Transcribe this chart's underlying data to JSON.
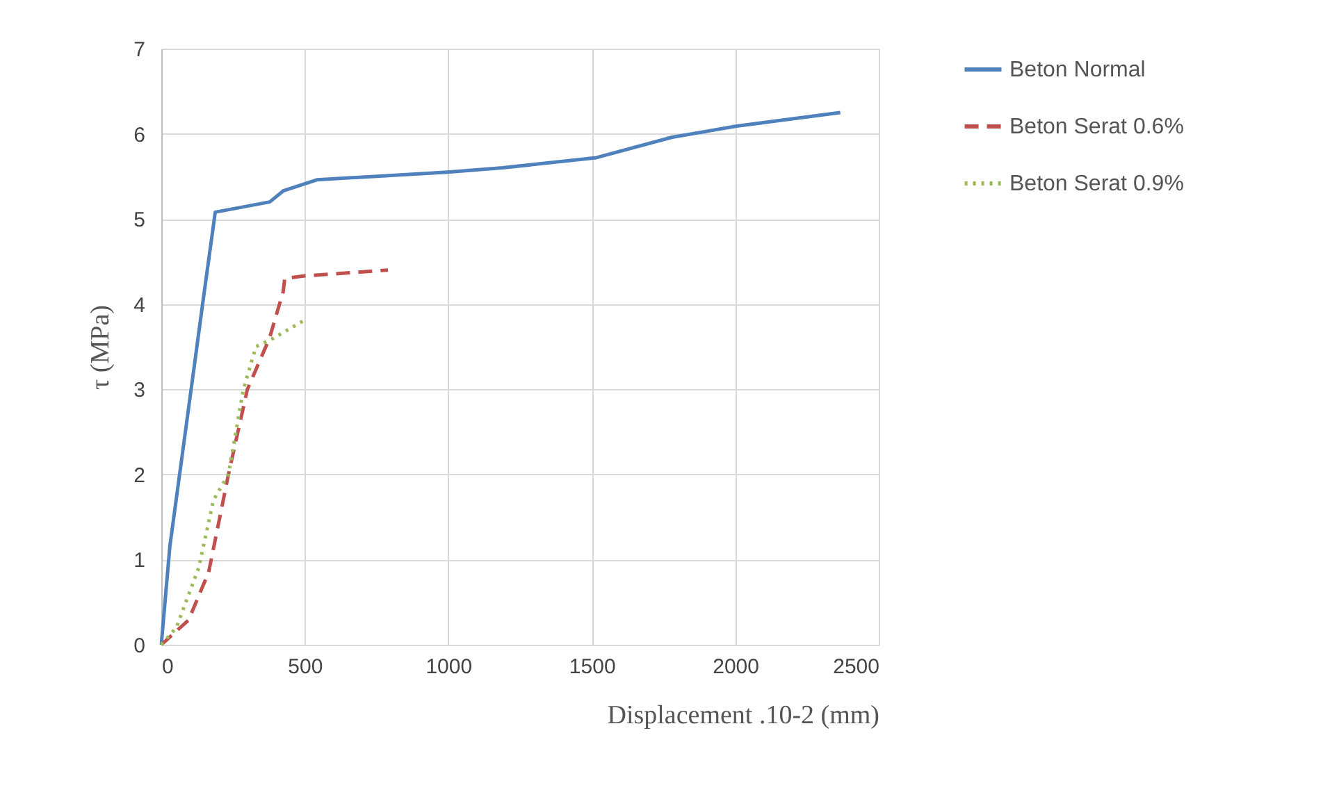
{
  "chart_data": {
    "type": "line",
    "xlabel": "Displacement .10-2 (mm)",
    "ylabel": "τ (MPa)",
    "xlim": [
      0,
      2500
    ],
    "xticks": [
      0,
      500,
      1000,
      1500,
      2000,
      2500
    ],
    "ylim": [
      0,
      7
    ],
    "yticks": [
      0,
      1,
      2,
      3,
      4,
      5,
      6,
      7
    ],
    "grid": true,
    "legend": "right",
    "series": [
      {
        "name": "Beton Normal",
        "color": "#4f81bd",
        "line_style": "solid",
        "x": [
          0,
          30,
          104,
          148,
          188,
          378,
          425,
          542,
          998,
          1189,
          1516,
          1780,
          2005,
          2366
        ],
        "values": [
          0,
          1.16,
          3.0,
          4.1,
          5.08,
          5.2,
          5.33,
          5.46,
          5.55,
          5.6,
          5.72,
          5.96,
          6.09,
          6.25
        ]
      },
      {
        "name": "Beton Serat 0.6%",
        "color": "#c0504d",
        "line_style": "dashed",
        "x": [
          0,
          95,
          165,
          234,
          300,
          377,
          425,
          430,
          495,
          790
        ],
        "values": [
          0,
          0.29,
          0.85,
          2.0,
          3.0,
          3.6,
          4.15,
          4.3,
          4.33,
          4.4
        ]
      },
      {
        "name": "Beton Serat 0.9%",
        "color": "#9bbb59",
        "line_style": "dotted",
        "x": [
          0,
          52,
          130,
          182,
          234,
          286,
          330,
          391,
          503
        ],
        "values": [
          0,
          0.2,
          0.9,
          1.7,
          2.0,
          3.0,
          3.5,
          3.6,
          3.82
        ]
      }
    ]
  }
}
